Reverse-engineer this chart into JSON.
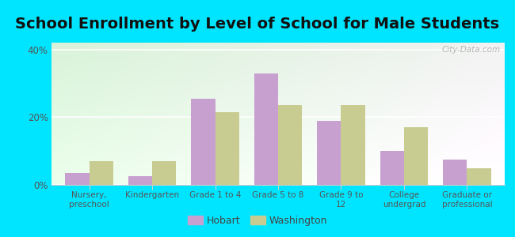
{
  "title": "School Enrollment by Level of School for Male Students",
  "categories": [
    "Nursery,\npreschool",
    "Kindergarten",
    "Grade 1 to 4",
    "Grade 5 to 8",
    "Grade 9 to\n12",
    "College\nundergrad",
    "Graduate or\nprofessional"
  ],
  "hobart": [
    3.5,
    2.5,
    25.5,
    33.0,
    19.0,
    10.0,
    7.5
  ],
  "washington": [
    7.0,
    7.0,
    21.5,
    23.5,
    23.5,
    17.0,
    5.0
  ],
  "hobart_color": "#c8a0d0",
  "washington_color": "#c8cc90",
  "background_color": "#00e5ff",
  "ylabel_ticks": [
    "0%",
    "20%",
    "40%"
  ],
  "yticks": [
    0,
    20,
    40
  ],
  "ylim": [
    0,
    42
  ],
  "title_fontsize": 14,
  "legend_labels": [
    "Hobart",
    "Washington"
  ],
  "bar_width": 0.38,
  "watermark": "City-Data.com"
}
